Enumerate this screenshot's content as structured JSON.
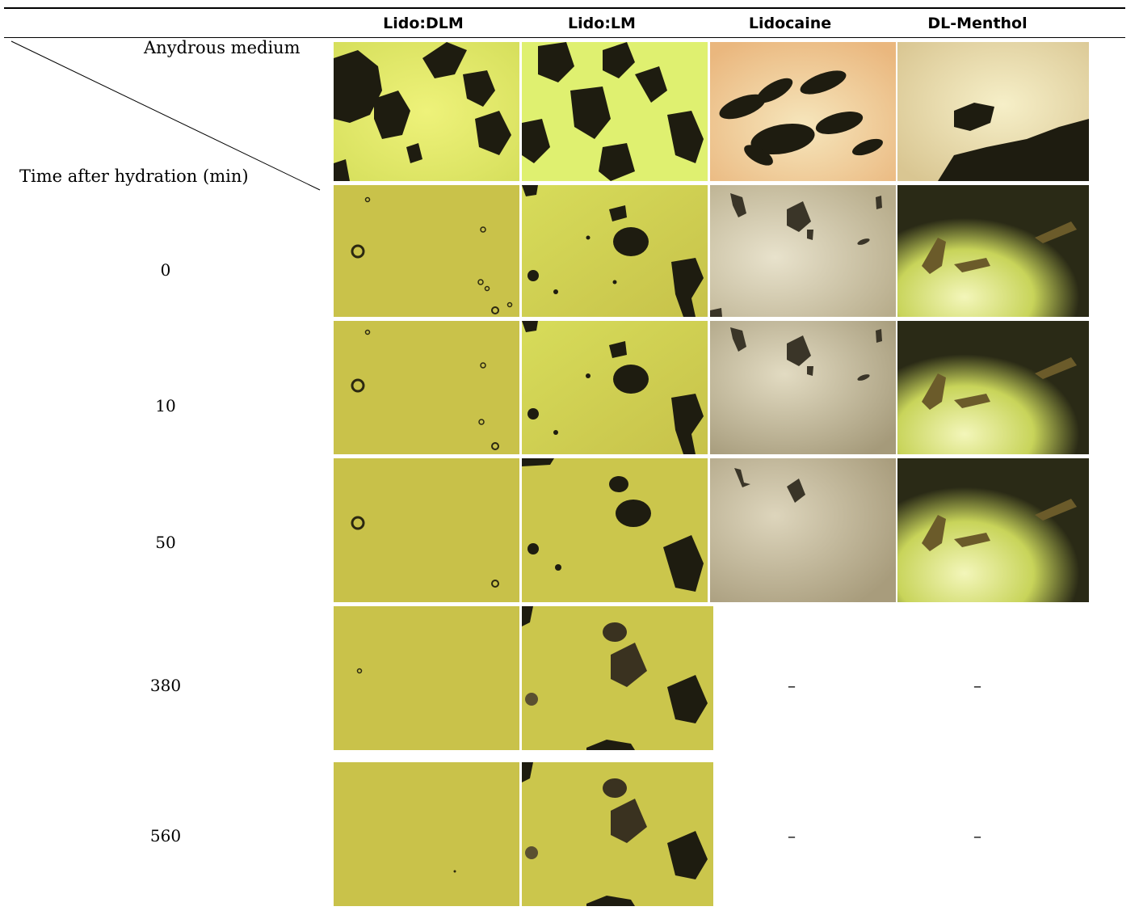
{
  "columns": {
    "c1": "Lido:DLM",
    "c2": "Lido:LM",
    "c3": "Lidocaine",
    "c4": "DL-Menthol"
  },
  "header": {
    "anhydrous": "Anydrous medium",
    "time_after": "Time after hydration (min)"
  },
  "rows": {
    "r0": "0",
    "r10": "10",
    "r50": "50",
    "r380": "380",
    "r560": "560"
  },
  "empty_cell": "–",
  "colors": {
    "yellow_bg": "#c9c24a",
    "bright_bg": "#e4ee70",
    "beige_bg": "#d8cdb0",
    "particle": "#1e1c10"
  }
}
